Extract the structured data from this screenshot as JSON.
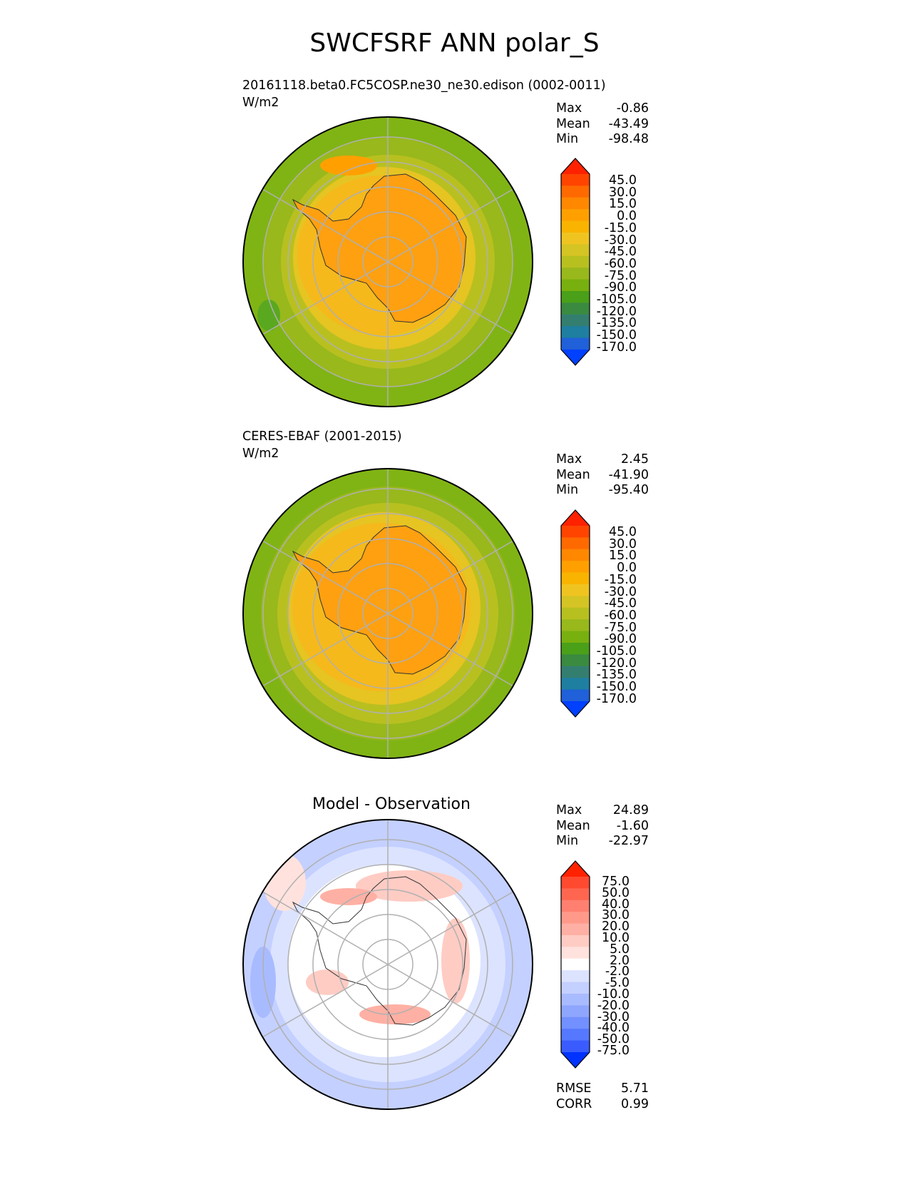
{
  "title": "SWCFSRF ANN polar_S",
  "panels": [
    {
      "subtitle": "20161118.beta0.FC5COSP.ne30_ne30.edison (0002-0011)",
      "units": "W/m2",
      "stats": {
        "max_label": "Max",
        "max": "-0.86",
        "mean_label": "Mean",
        "mean": "-43.49",
        "min_label": "Min",
        "min": "-98.48"
      },
      "colorbar_ticks": [
        "45.0",
        "30.0",
        "15.0",
        "0.0",
        "-15.0",
        "-30.0",
        "-45.0",
        "-60.0",
        "-75.0",
        "-90.0",
        "-105.0",
        "-120.0",
        "-135.0",
        "-150.0",
        "-170.0"
      ]
    },
    {
      "subtitle": "CERES-EBAF (2001-2015)",
      "units": "W/m2",
      "stats": {
        "max_label": "Max",
        "max": "2.45",
        "mean_label": "Mean",
        "mean": "-41.90",
        "min_label": "Min",
        "min": "-95.40"
      },
      "colorbar_ticks": [
        "45.0",
        "30.0",
        "15.0",
        "0.0",
        "-15.0",
        "-30.0",
        "-45.0",
        "-60.0",
        "-75.0",
        "-90.0",
        "-105.0",
        "-120.0",
        "-135.0",
        "-150.0",
        "-170.0"
      ]
    },
    {
      "subtitle": "Model - Observation",
      "stats": {
        "max_label": "Max",
        "max": "24.89",
        "mean_label": "Mean",
        "mean": "-1.60",
        "min_label": "Min",
        "min": "-22.97"
      },
      "colorbar_ticks": [
        "75.0",
        "50.0",
        "40.0",
        "30.0",
        "20.0",
        "10.0",
        "5.0",
        "2.0",
        "-2.0",
        "-5.0",
        "-10.0",
        "-20.0",
        "-30.0",
        "-40.0",
        "-50.0",
        "-75.0"
      ],
      "metrics": {
        "rmse_label": "RMSE",
        "rmse": "5.71",
        "corr_label": "CORR",
        "corr": "0.99"
      }
    }
  ],
  "colors": {
    "field_scale": [
      "#ff2200",
      "#ff4400",
      "#ff6a00",
      "#ff8800",
      "#ffa000",
      "#f8b400",
      "#f0c420",
      "#d4c424",
      "#b8c020",
      "#98b81c",
      "#78b010",
      "#4aa018",
      "#3a8a40",
      "#347e70",
      "#1f7fa0",
      "#2060d8",
      "#0040ff"
    ],
    "diff_scale": [
      "#ff2200",
      "#ff4a30",
      "#ff6650",
      "#ff8070",
      "#ff9a8a",
      "#ffb0a4",
      "#ffccc4",
      "#ffe2de",
      "#ffffff",
      "#dce3ff",
      "#c4d0ff",
      "#a9bbff",
      "#8fa6ff",
      "#7290ff",
      "#5578ff",
      "#3a5cff",
      "#0033ff"
    ]
  },
  "chart_data": [
    {
      "type": "heatmap",
      "projection": "south polar stereographic",
      "title": "20161118.beta0.FC5COSP.ne30_ne30.edison (0002-0011)",
      "units": "W/m2",
      "max": -0.86,
      "mean": -43.49,
      "min": -98.48,
      "levels": [
        -170,
        -150,
        -135,
        -120,
        -105,
        -90,
        -75,
        -60,
        -45,
        -30,
        -15,
        0,
        15,
        30,
        45
      ],
      "colorbar_extend": "both"
    },
    {
      "type": "heatmap",
      "projection": "south polar stereographic",
      "title": "CERES-EBAF (2001-2015)",
      "units": "W/m2",
      "max": 2.45,
      "mean": -41.9,
      "min": -95.4,
      "levels": [
        -170,
        -150,
        -135,
        -120,
        -105,
        -90,
        -75,
        -60,
        -45,
        -30,
        -15,
        0,
        15,
        30,
        45
      ],
      "colorbar_extend": "both"
    },
    {
      "type": "heatmap",
      "projection": "south polar stereographic",
      "title": "Model - Observation",
      "max": 24.89,
      "mean": -1.6,
      "min": -22.97,
      "levels": [
        -75,
        -50,
        -40,
        -30,
        -20,
        -10,
        -5,
        -2,
        2,
        5,
        10,
        20,
        30,
        40,
        50,
        75
      ],
      "colorbar_extend": "both",
      "rmse": 5.71,
      "corr": 0.99
    }
  ]
}
